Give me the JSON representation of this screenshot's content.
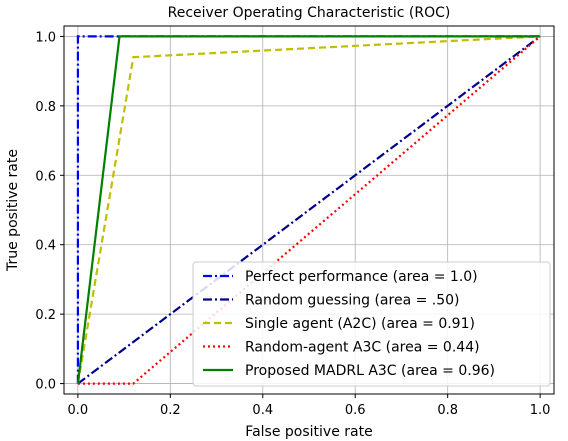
{
  "chart_data": {
    "type": "line",
    "title": "Receiver Operating Characteristic (ROC)",
    "xlabel": "False positive rate",
    "ylabel": "True positive rate",
    "xlim": [
      -0.03,
      1.03
    ],
    "ylim": [
      -0.03,
      1.03
    ],
    "xticks": [
      "0.0",
      "0.2",
      "0.4",
      "0.6",
      "0.8",
      "1.0"
    ],
    "yticks": [
      "0.0",
      "0.2",
      "0.4",
      "0.6",
      "0.8",
      "1.0"
    ],
    "grid": true,
    "legend_position": "lower-right",
    "series": [
      {
        "name": "Perfect performance (area = 1.0)",
        "color": "#0000ff",
        "style": "dashdot",
        "x": [
          0,
          0,
          1
        ],
        "y": [
          0,
          1,
          1
        ]
      },
      {
        "name": "Random guessing (area = .50)",
        "color": "#00008b",
        "style": "dashdot",
        "x": [
          0,
          1
        ],
        "y": [
          0,
          1
        ]
      },
      {
        "name": "Single agent (A2C) (area = 0.91)",
        "color": "#bfbf00",
        "style": "dashed",
        "x": [
          0,
          0.12,
          1
        ],
        "y": [
          0,
          0.94,
          1
        ]
      },
      {
        "name": "Random-agent A3C (area = 0.44)",
        "color": "#ff0000",
        "style": "dotted",
        "x": [
          0,
          0.12,
          1
        ],
        "y": [
          0,
          0,
          1
        ]
      },
      {
        "name": "Proposed MADRL A3C (area = 0.96)",
        "color": "#008000",
        "style": "solid",
        "x": [
          0,
          0.09,
          1
        ],
        "y": [
          0,
          1,
          1
        ]
      }
    ]
  }
}
